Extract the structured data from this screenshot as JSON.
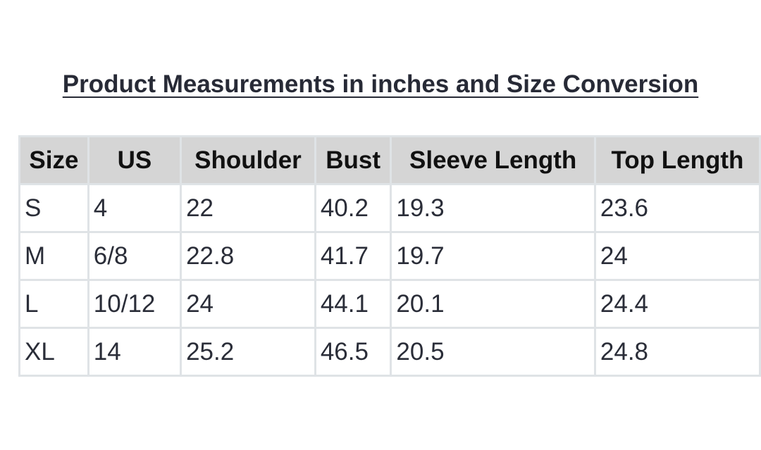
{
  "title": "Product Measurements in inches and Size Conversion",
  "table": {
    "headers": [
      "Size",
      "US",
      "Shoulder",
      "Bust",
      "Sleeve Length",
      "Top Length"
    ],
    "rows": [
      [
        "S",
        "4",
        "22",
        "40.2",
        "19.3",
        "23.6"
      ],
      [
        "M",
        "6/8",
        "22.8",
        "41.7",
        "19.7",
        "24"
      ],
      [
        "L",
        "10/12",
        "24",
        "44.1",
        "20.1",
        "24.4"
      ],
      [
        "XL",
        "14",
        "25.2",
        "46.5",
        "20.5",
        "24.8"
      ]
    ]
  }
}
